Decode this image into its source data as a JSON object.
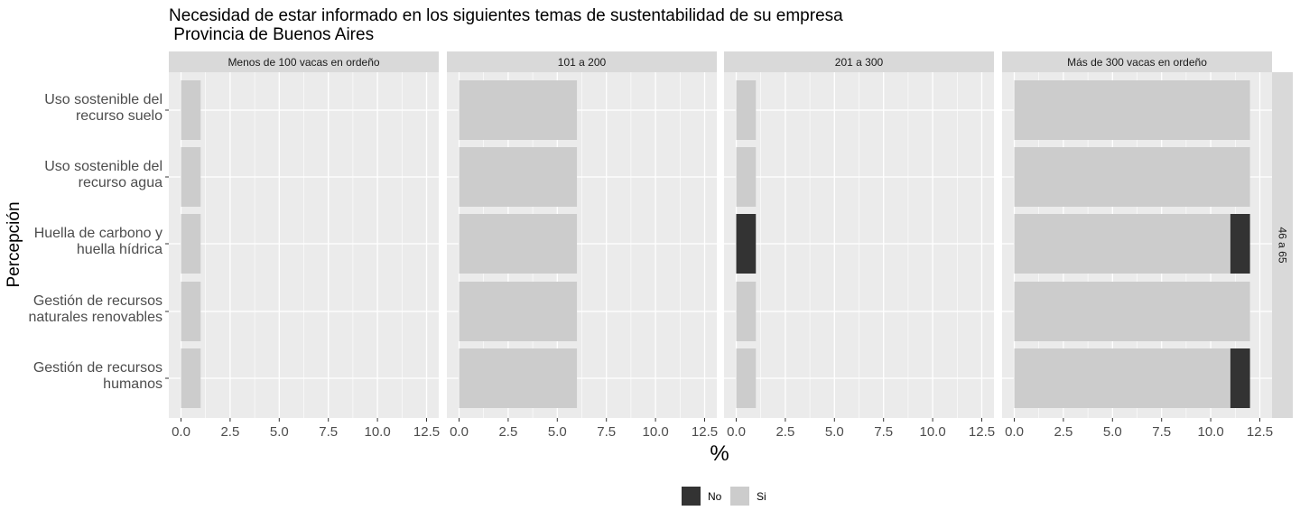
{
  "chart_data": {
    "type": "bar",
    "orientation": "horizontal",
    "stacked": true,
    "title": "Necesidad de  estar informado en los siguientes temas de sustentabilidad de su empresa",
    "subtitle": " Provincia de Buenos Aires",
    "xlabel": "%",
    "ylabel": "Percepción",
    "xlim": [
      0,
      12.5
    ],
    "x_ticks": [
      "0.0",
      "2.5",
      "5.0",
      "7.5",
      "10.0",
      "12.5"
    ],
    "x_tick_values": [
      0,
      2.5,
      5,
      7.5,
      10,
      12.5
    ],
    "categories": [
      [
        "Uso sostenible del",
        "recurso suelo"
      ],
      [
        "Uso sostenible del",
        "recurso agua"
      ],
      [
        "Huella de carbono y",
        "huella hídrica"
      ],
      [
        "Gestión de recursos",
        "naturales renovables"
      ],
      [
        "Gestión de recursos",
        "humanos"
      ]
    ],
    "row_facet": "46 a 65",
    "facets": [
      {
        "label": "Menos de 100 vacas en ordeño",
        "series": [
          {
            "name": "No",
            "values": [
              0,
              0,
              0,
              0,
              0
            ]
          },
          {
            "name": "Si",
            "values": [
              1,
              1,
              1,
              1,
              1
            ]
          }
        ]
      },
      {
        "label": "101 a 200",
        "series": [
          {
            "name": "No",
            "values": [
              0,
              0,
              0,
              0,
              0
            ]
          },
          {
            "name": "Si",
            "values": [
              6,
              6,
              6,
              6,
              6
            ]
          }
        ]
      },
      {
        "label": "201 a 300",
        "series": [
          {
            "name": "No",
            "values": [
              0,
              0,
              1,
              0,
              0
            ]
          },
          {
            "name": "Si",
            "values": [
              1,
              1,
              0,
              1,
              1
            ]
          }
        ]
      },
      {
        "label": "Más de 300 vacas en ordeño",
        "series": [
          {
            "name": "No",
            "values": [
              0,
              0,
              1,
              0,
              1
            ]
          },
          {
            "name": "Si",
            "values": [
              12,
              12,
              11,
              12,
              11
            ]
          }
        ]
      }
    ],
    "legend": {
      "position": "bottom",
      "entries": [
        {
          "name": "No",
          "color": "#333333"
        },
        {
          "name": "Si",
          "color": "#cccccc"
        }
      ]
    },
    "colors": {
      "No": "#333333",
      "Si": "#cccccc",
      "panel_bg": "#ebebeb",
      "grid": "#ffffff",
      "strip_bg": "#d9d9d9"
    },
    "grid": true
  }
}
